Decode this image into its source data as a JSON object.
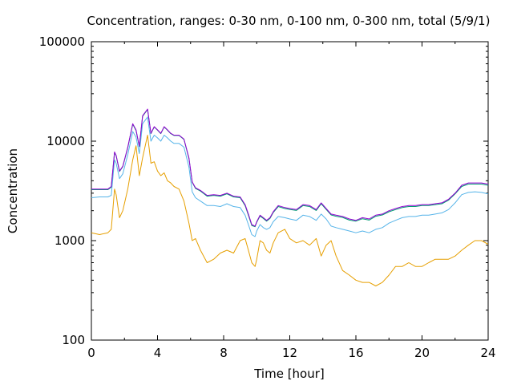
{
  "chart_data": {
    "type": "line",
    "title": "Concentration, ranges: 0-30 nm, 0-100 nm, 0-300 nm, total (5/9/1)",
    "xlabel": "Time [hour]",
    "ylabel": "Concentration",
    "xlim": [
      0,
      24
    ],
    "ylim": [
      100,
      100000
    ],
    "yscale": "log",
    "grid": false,
    "legend": "none",
    "x_ticks": [
      "0",
      "4",
      "8",
      "12",
      "16",
      "20",
      "24"
    ],
    "y_ticks": [
      "100",
      "1000",
      "10000",
      "100000"
    ],
    "x": [
      0,
      0.5,
      1,
      1.2,
      1.4,
      1.5,
      1.7,
      1.9,
      2.2,
      2.5,
      2.7,
      2.9,
      3.1,
      3.4,
      3.6,
      3.8,
      4.0,
      4.2,
      4.4,
      4.6,
      4.8,
      5.0,
      5.3,
      5.6,
      5.9,
      6.1,
      6.3,
      6.6,
      7.0,
      7.4,
      7.8,
      8.2,
      8.6,
      9.0,
      9.3,
      9.5,
      9.7,
      9.9,
      10.0,
      10.2,
      10.4,
      10.6,
      10.8,
      11.0,
      11.3,
      11.7,
      12.0,
      12.4,
      12.8,
      13.2,
      13.6,
      13.9,
      14.2,
      14.5,
      14.8,
      15.2,
      15.6,
      16.0,
      16.4,
      16.8,
      17.2,
      17.6,
      18.0,
      18.4,
      18.8,
      19.2,
      19.6,
      20.0,
      20.4,
      20.8,
      21.2,
      21.6,
      22.0,
      22.4,
      22.8,
      23.2,
      23.6,
      24.0
    ],
    "series": [
      {
        "color": "#9400d3",
        "values": [
          3300,
          3300,
          3300,
          3500,
          7800,
          7200,
          5000,
          5600,
          8700,
          15000,
          13000,
          8900,
          18000,
          21000,
          12000,
          14000,
          13000,
          12000,
          14000,
          13000,
          12000,
          11500,
          11500,
          10500,
          6800,
          3900,
          3400,
          3200,
          2850,
          2900,
          2850,
          3000,
          2800,
          2750,
          2300,
          1850,
          1450,
          1400,
          1550,
          1800,
          1700,
          1600,
          1700,
          1950,
          2250,
          2150,
          2100,
          2050,
          2300,
          2250,
          2050,
          2400,
          2100,
          1850,
          1800,
          1750,
          1650,
          1600,
          1700,
          1650,
          1800,
          1850,
          2000,
          2100,
          2200,
          2250,
          2250,
          2300,
          2300,
          2350,
          2400,
          2600,
          3000,
          3600,
          3800,
          3800,
          3800,
          3700
        ]
      },
      {
        "color": "#009e73",
        "values": [
          3250,
          3250,
          3250,
          3450,
          7700,
          7100,
          4950,
          5550,
          8600,
          14800,
          12800,
          8800,
          17800,
          20800,
          11900,
          13900,
          12900,
          11900,
          13900,
          12900,
          11900,
          11400,
          11400,
          10400,
          6700,
          3850,
          3350,
          3150,
          2800,
          2850,
          2800,
          2950,
          2750,
          2700,
          2250,
          1800,
          1420,
          1380,
          1530,
          1770,
          1670,
          1570,
          1670,
          1920,
          2200,
          2100,
          2060,
          2010,
          2250,
          2200,
          2010,
          2350,
          2060,
          1810,
          1760,
          1710,
          1610,
          1570,
          1660,
          1610,
          1760,
          1810,
          1950,
          2050,
          2150,
          2200,
          2200,
          2250,
          2250,
          2300,
          2350,
          2550,
          2950,
          3500,
          3700,
          3700,
          3700,
          3600
        ]
      },
      {
        "color": "#56b4e9",
        "values": [
          2700,
          2750,
          2750,
          2850,
          6500,
          6000,
          4200,
          4700,
          7300,
          12500,
          11000,
          7500,
          15000,
          17500,
          10000,
          11500,
          10800,
          10000,
          11500,
          10800,
          10000,
          9500,
          9500,
          8700,
          5500,
          3100,
          2700,
          2500,
          2250,
          2250,
          2200,
          2350,
          2200,
          2150,
          1800,
          1450,
          1150,
          1100,
          1250,
          1450,
          1350,
          1300,
          1350,
          1550,
          1750,
          1700,
          1650,
          1600,
          1800,
          1750,
          1600,
          1850,
          1650,
          1400,
          1350,
          1300,
          1250,
          1200,
          1250,
          1200,
          1300,
          1350,
          1500,
          1600,
          1700,
          1750,
          1750,
          1800,
          1800,
          1850,
          1900,
          2050,
          2400,
          2900,
          3050,
          3100,
          3050,
          2950
        ]
      },
      {
        "color": "#e69f00",
        "values": [
          1200,
          1150,
          1200,
          1300,
          3300,
          2900,
          1700,
          2000,
          3300,
          6500,
          9000,
          4500,
          6800,
          11500,
          6000,
          6200,
          5000,
          4500,
          4800,
          4000,
          3800,
          3500,
          3300,
          2500,
          1500,
          1000,
          1050,
          800,
          600,
          650,
          750,
          800,
          750,
          1000,
          1050,
          800,
          600,
          550,
          650,
          1000,
          950,
          800,
          750,
          950,
          1200,
          1300,
          1050,
          950,
          1000,
          900,
          1050,
          700,
          900,
          1000,
          700,
          500,
          450,
          400,
          380,
          380,
          350,
          380,
          450,
          550,
          550,
          600,
          550,
          550,
          600,
          650,
          650,
          650,
          700,
          800,
          900,
          1000,
          1000,
          920
        ]
      }
    ]
  }
}
